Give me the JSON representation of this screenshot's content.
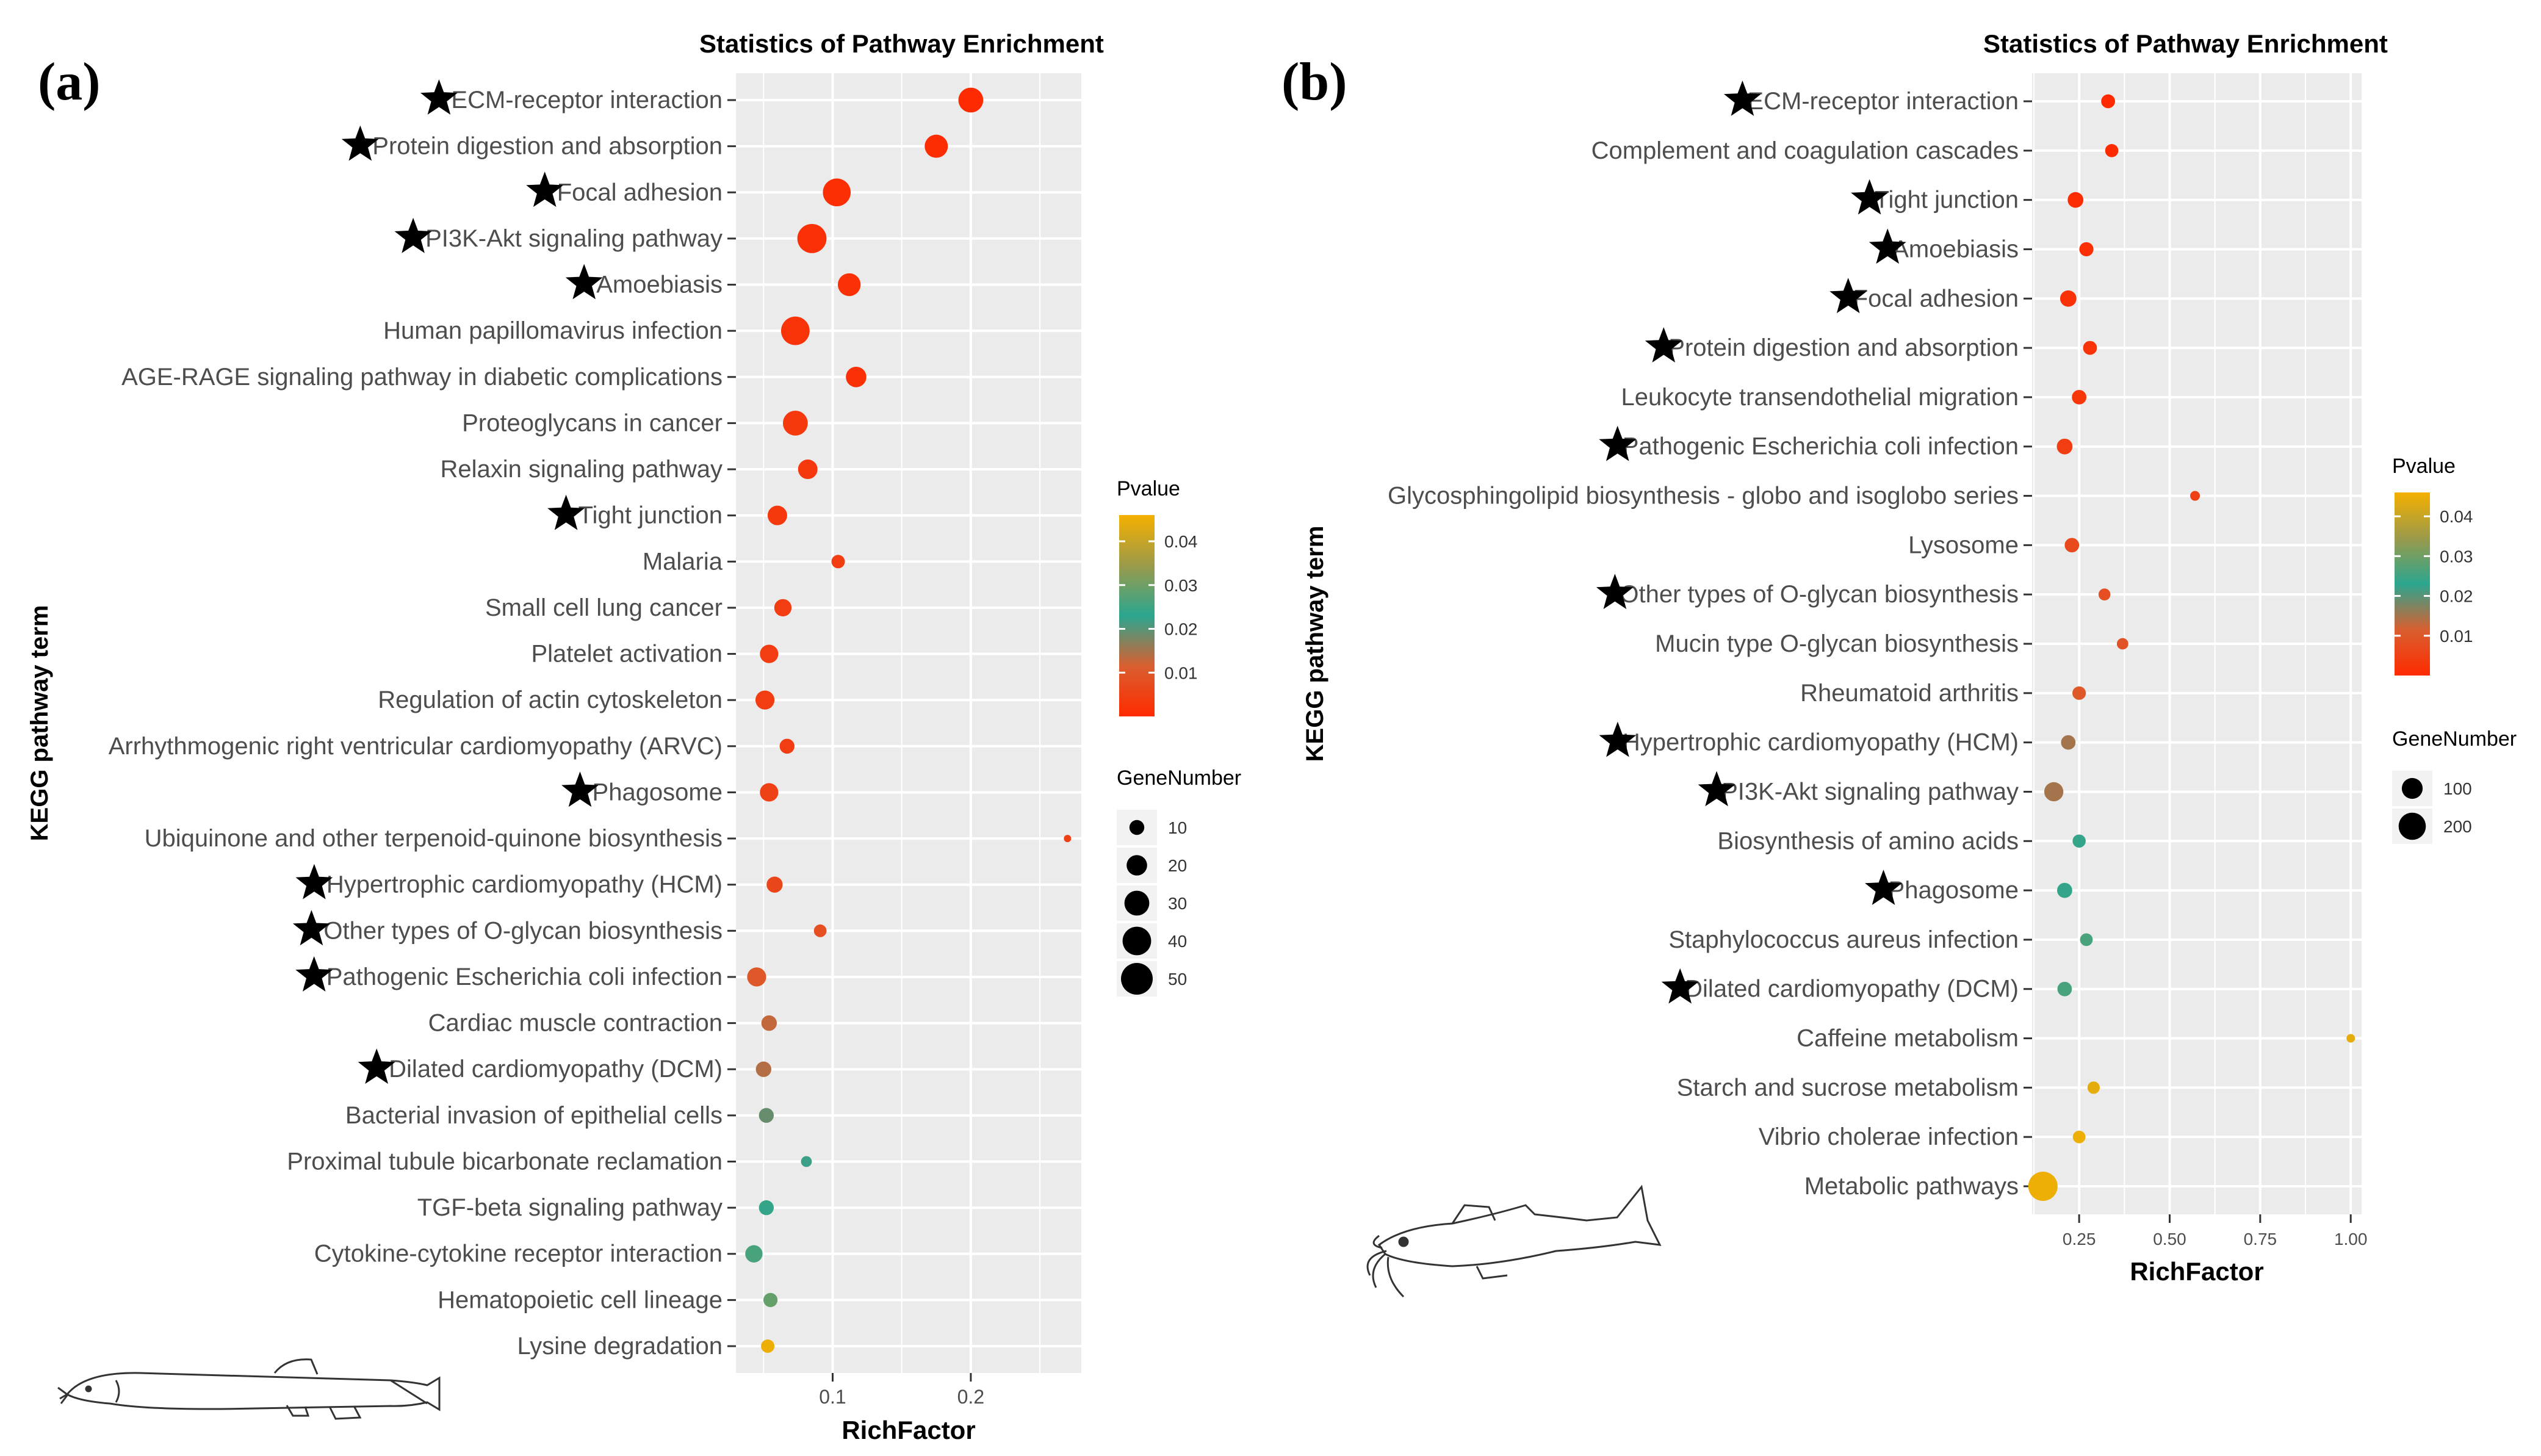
{
  "panels": {
    "a": {
      "letter": "(a)"
    },
    "b": {
      "letter": "(b)"
    }
  },
  "colors": {
    "panel_background": "#ebebeb",
    "grid": "#ffffff",
    "star": "#000000",
    "pvalue_gradient": [
      "#ff2a00",
      "#d95f30",
      "#2ba68f",
      "#9b9a4a",
      "#f5b000"
    ]
  },
  "icons": {
    "a": "loach-fish-drawing",
    "b": "catfish-drawing"
  },
  "chart_data": [
    {
      "type": "scatter",
      "title": "Statistics of Pathway Enrichment",
      "xlabel": "RichFactor",
      "ylabel": "KEGG pathway term",
      "xlim": [
        0.03,
        0.28
      ],
      "xticks": [
        0.1,
        0.2
      ],
      "xtick_labels": [
        "0.1",
        "0.2"
      ],
      "grid": true,
      "legend_placement": "right",
      "color_legend": {
        "title": "Pvalue",
        "min": 0,
        "max": 0.046,
        "ticks": [
          0.01,
          0.02,
          0.03,
          0.04
        ],
        "tick_labels": [
          "0.01",
          "0.02",
          "0.03",
          "0.04"
        ]
      },
      "size_legend": {
        "title": "GeneNumber",
        "values": [
          10,
          20,
          30,
          40,
          50
        ],
        "labels": [
          "10",
          "20",
          "30",
          "40",
          "50"
        ]
      },
      "points": [
        {
          "term": "ECM-receptor interaction",
          "star": true,
          "richfactor": 0.2,
          "genes": 30,
          "pvalue": 0.0002
        },
        {
          "term": "Protein digestion and absorption",
          "star": true,
          "richfactor": 0.175,
          "genes": 26,
          "pvalue": 0.0004
        },
        {
          "term": "Focal adhesion",
          "star": true,
          "richfactor": 0.103,
          "genes": 38,
          "pvalue": 0.0008
        },
        {
          "term": "PI3K-Akt signaling pathway",
          "star": true,
          "richfactor": 0.085,
          "genes": 42,
          "pvalue": 0.0015
        },
        {
          "term": "Amoebiasis",
          "star": true,
          "richfactor": 0.112,
          "genes": 25,
          "pvalue": 0.0015
        },
        {
          "term": "Human papillomavirus infection",
          "star": false,
          "richfactor": 0.073,
          "genes": 40,
          "pvalue": 0.002
        },
        {
          "term": "AGE-RAGE signaling pathway in diabetic complications",
          "star": false,
          "richfactor": 0.117,
          "genes": 20,
          "pvalue": 0.0015
        },
        {
          "term": "Proteoglycans in cancer",
          "star": false,
          "richfactor": 0.073,
          "genes": 30,
          "pvalue": 0.003
        },
        {
          "term": "Relaxin signaling pathway",
          "star": false,
          "richfactor": 0.082,
          "genes": 18,
          "pvalue": 0.003
        },
        {
          "term": "Tight junction",
          "star": true,
          "richfactor": 0.06,
          "genes": 18,
          "pvalue": 0.003
        },
        {
          "term": "Malaria",
          "star": false,
          "richfactor": 0.104,
          "genes": 8,
          "pvalue": 0.004
        },
        {
          "term": "Small cell lung cancer",
          "star": false,
          "richfactor": 0.064,
          "genes": 14,
          "pvalue": 0.004
        },
        {
          "term": "Platelet activation",
          "star": false,
          "richfactor": 0.054,
          "genes": 16,
          "pvalue": 0.004
        },
        {
          "term": "Regulation of actin cytoskeleton",
          "star": false,
          "richfactor": 0.051,
          "genes": 17,
          "pvalue": 0.004
        },
        {
          "term": "Arrhythmogenic right ventricular cardiomyopathy (ARVC)",
          "star": false,
          "richfactor": 0.067,
          "genes": 10,
          "pvalue": 0.004
        },
        {
          "term": "Phagosome",
          "star": true,
          "richfactor": 0.054,
          "genes": 16,
          "pvalue": 0.005
        },
        {
          "term": "Ubiquinone and other terpenoid-quinone biosynthesis",
          "star": false,
          "richfactor": 0.27,
          "genes": 2,
          "pvalue": 0.005
        },
        {
          "term": "Hypertrophic cardiomyopathy (HCM)",
          "star": true,
          "richfactor": 0.058,
          "genes": 12,
          "pvalue": 0.006
        },
        {
          "term": "Other types of O-glycan biosynthesis",
          "star": true,
          "richfactor": 0.091,
          "genes": 7,
          "pvalue": 0.008
        },
        {
          "term": "Pathogenic Escherichia coli infection",
          "star": true,
          "richfactor": 0.045,
          "genes": 17,
          "pvalue": 0.01
        },
        {
          "term": "Cardiac muscle contraction",
          "star": false,
          "richfactor": 0.054,
          "genes": 11,
          "pvalue": 0.013
        },
        {
          "term": "Dilated cardiomyopathy (DCM)",
          "star": true,
          "richfactor": 0.05,
          "genes": 11,
          "pvalue": 0.014
        },
        {
          "term": "Bacterial invasion of epithelial cells",
          "star": false,
          "richfactor": 0.052,
          "genes": 10,
          "pvalue": 0.019
        },
        {
          "term": "Proximal tubule bicarbonate reclamation",
          "star": false,
          "richfactor": 0.081,
          "genes": 5,
          "pvalue": 0.022
        },
        {
          "term": "TGF-beta signaling pathway",
          "star": false,
          "richfactor": 0.052,
          "genes": 10,
          "pvalue": 0.024
        },
        {
          "term": "Cytokine-cytokine receptor interaction",
          "star": false,
          "richfactor": 0.043,
          "genes": 14,
          "pvalue": 0.026
        },
        {
          "term": "Hematopoietic cell lineage",
          "star": false,
          "richfactor": 0.055,
          "genes": 9,
          "pvalue": 0.029
        },
        {
          "term": "Lysine degradation",
          "star": false,
          "richfactor": 0.053,
          "genes": 8,
          "pvalue": 0.045
        }
      ]
    },
    {
      "type": "scatter",
      "title": "Statistics of Pathway Enrichment",
      "xlabel": "RichFactor",
      "ylabel": "KEGG pathway term",
      "xlim": [
        0.12,
        1.03
      ],
      "xticks": [
        0.25,
        0.5,
        0.75,
        1.0
      ],
      "xtick_labels": [
        "0.25",
        "0.50",
        "0.75",
        "1.00"
      ],
      "grid": true,
      "legend_placement": "right",
      "color_legend": {
        "title": "Pvalue",
        "min": 0,
        "max": 0.046,
        "ticks": [
          0.01,
          0.02,
          0.03,
          0.04
        ],
        "tick_labels": [
          "0.01",
          "0.02",
          "0.03",
          "0.04"
        ]
      },
      "size_legend": {
        "title": "GeneNumber",
        "values": [
          100,
          200
        ],
        "labels": [
          "100",
          "200"
        ]
      },
      "points": [
        {
          "term": "ECM-receptor interaction",
          "star": true,
          "richfactor": 0.33,
          "genes": 30,
          "pvalue": 0.0001
        },
        {
          "term": "Complement and coagulation cascades",
          "star": false,
          "richfactor": 0.34,
          "genes": 25,
          "pvalue": 0.0003
        },
        {
          "term": "Tight junction",
          "star": true,
          "richfactor": 0.24,
          "genes": 45,
          "pvalue": 0.0006
        },
        {
          "term": "Amoebiasis",
          "star": true,
          "richfactor": 0.27,
          "genes": 32,
          "pvalue": 0.001
        },
        {
          "term": "Focal adhesion",
          "star": true,
          "richfactor": 0.22,
          "genes": 50,
          "pvalue": 0.0015
        },
        {
          "term": "Protein digestion and absorption",
          "star": true,
          "richfactor": 0.28,
          "genes": 30,
          "pvalue": 0.002
        },
        {
          "term": "Leukocyte transendothelial migration",
          "star": false,
          "richfactor": 0.25,
          "genes": 35,
          "pvalue": 0.0025
        },
        {
          "term": "Pathogenic Escherichia coli infection",
          "star": true,
          "richfactor": 0.21,
          "genes": 45,
          "pvalue": 0.004
        },
        {
          "term": "Glycosphingolipid biosynthesis - globo and isoglobo series",
          "star": false,
          "richfactor": 0.57,
          "genes": 8,
          "pvalue": 0.005
        },
        {
          "term": "Lysosome",
          "star": false,
          "richfactor": 0.23,
          "genes": 35,
          "pvalue": 0.007
        },
        {
          "term": "Other types of O-glycan biosynthesis",
          "star": true,
          "richfactor": 0.32,
          "genes": 18,
          "pvalue": 0.008
        },
        {
          "term": "Mucin type O-glycan biosynthesis",
          "star": false,
          "richfactor": 0.37,
          "genes": 15,
          "pvalue": 0.009
        },
        {
          "term": "Rheumatoid arthritis",
          "star": false,
          "richfactor": 0.25,
          "genes": 28,
          "pvalue": 0.01
        },
        {
          "term": "Hypertrophic cardiomyopathy (HCM)",
          "star": true,
          "richfactor": 0.22,
          "genes": 35,
          "pvalue": 0.015
        },
        {
          "term": "PI3K-Akt signaling pathway",
          "star": true,
          "richfactor": 0.18,
          "genes": 80,
          "pvalue": 0.015
        },
        {
          "term": "Biosynthesis of amino acids",
          "star": false,
          "richfactor": 0.25,
          "genes": 25,
          "pvalue": 0.024
        },
        {
          "term": "Phagosome",
          "star": true,
          "richfactor": 0.21,
          "genes": 40,
          "pvalue": 0.024
        },
        {
          "term": "Staphylococcus aureus infection",
          "star": false,
          "richfactor": 0.27,
          "genes": 22,
          "pvalue": 0.026
        },
        {
          "term": "Dilated cardiomyopathy (DCM)",
          "star": true,
          "richfactor": 0.21,
          "genes": 35,
          "pvalue": 0.026
        },
        {
          "term": "Caffeine metabolism",
          "star": false,
          "richfactor": 1.0,
          "genes": 4,
          "pvalue": 0.044
        },
        {
          "term": "Starch and sucrose metabolism",
          "star": false,
          "richfactor": 0.29,
          "genes": 20,
          "pvalue": 0.044
        },
        {
          "term": "Vibrio cholerae infection",
          "star": false,
          "richfactor": 0.25,
          "genes": 22,
          "pvalue": 0.045
        },
        {
          "term": "Metabolic pathways",
          "star": false,
          "richfactor": 0.15,
          "genes": 240,
          "pvalue": 0.045
        }
      ]
    }
  ]
}
